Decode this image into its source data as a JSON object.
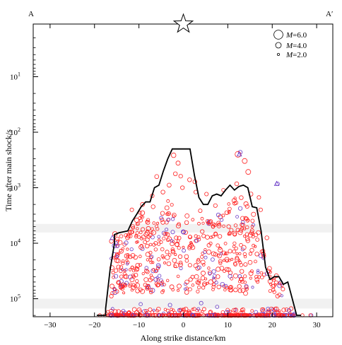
{
  "chart_data": {
    "type": "scatter",
    "title": "",
    "xlabel": "Along strike distance/km",
    "ylabel": "Time after main shock/s",
    "xlim": [
      -33,
      33
    ],
    "ylim": [
      1,
      300000
    ],
    "y_scale": "log",
    "y_reversed": true,
    "y_axis_side": "left",
    "x_ticks": [
      -30,
      -20,
      -10,
      0,
      10,
      20,
      30
    ],
    "x_tick_labels": [
      "−30",
      "−20",
      "−10",
      "0",
      "10",
      "20",
      "30"
    ],
    "y_ticks": [
      10,
      100,
      1000,
      10000,
      100000
    ],
    "y_tick_labels": [
      {
        "base": "10",
        "exp": "1"
      },
      {
        "base": "10",
        "exp": "2"
      },
      {
        "base": "10",
        "exp": "3"
      },
      {
        "base": "10",
        "exp": "4"
      },
      {
        "base": "10",
        "exp": "5"
      }
    ],
    "profile_labels": {
      "left": "A",
      "right": "A′"
    },
    "mainshock_marker": {
      "x": 0,
      "symbol": "star"
    },
    "shaded_bands": [
      {
        "y_from": 4500,
        "y_to": 6400,
        "color": "#e6e6e6"
      },
      {
        "y_from": 100000,
        "y_to": 150000,
        "color": "#e6e6e6"
      }
    ],
    "legend": {
      "placement": "top-right",
      "entries": [
        {
          "symbol": "M",
          "label": "=6.0",
          "magnitude": 6.0
        },
        {
          "symbol": "M",
          "label": "=4.0",
          "magnitude": 4.0
        },
        {
          "symbol": "M",
          "label": "=2.0",
          "magnitude": 2.0
        }
      ]
    },
    "colors": {
      "red_events": "#ff2020",
      "blue_events": "#6a3cc8",
      "envelope": "#000000",
      "band": "#e6e6e6"
    },
    "envelope_line": {
      "x": [
        -19.5,
        -17.5,
        -17.5,
        -16.5,
        -15.5,
        -15.5,
        -14.5,
        -12.5,
        -11.5,
        -10.5,
        -9.5,
        -8.5,
        -7.5,
        -6.5,
        -5.5,
        -4.5,
        -3.5,
        -2.5,
        -1.5,
        1.5,
        2.5,
        3.5,
        4.5,
        5.5,
        6.5,
        7.5,
        8.5,
        9.5,
        10.5,
        11.5,
        12.5,
        13.5,
        14.5,
        15.5,
        16.5,
        17.5,
        18.5,
        19.5,
        20.5,
        21.5,
        22.5,
        23.5,
        24.5,
        25.5,
        26.5
      ],
      "y": [
        350000,
        350000,
        150000,
        30000,
        10000,
        7000,
        6500,
        6000,
        4000,
        3000,
        2200,
        1800,
        1800,
        1000,
        900,
        500,
        300,
        200,
        200,
        200,
        600,
        1500,
        2000,
        2000,
        1400,
        1300,
        1400,
        1100,
        900,
        1100,
        950,
        900,
        1000,
        2200,
        2300,
        6000,
        27000,
        45000,
        40000,
        40000,
        55000,
        50000,
        100000,
        250000,
        250000
      ]
    },
    "events": [
      {
        "x": 12.8,
        "y": 230,
        "m": 3.0,
        "c": "b"
      },
      {
        "x": 12.3,
        "y": 250,
        "m": 4.1,
        "c": "r"
      },
      {
        "x": -2.2,
        "y": 260,
        "m": 3.4,
        "c": "r"
      },
      {
        "x": -1.2,
        "y": 360,
        "m": 3.2,
        "c": "r"
      },
      {
        "x": 13.8,
        "y": 330,
        "m": 3.6,
        "c": "r"
      },
      {
        "x": -6.0,
        "y": 630,
        "m": 3.1,
        "c": "r"
      },
      {
        "x": -1.8,
        "y": 560,
        "m": 3.0,
        "c": "r"
      },
      {
        "x": -0.6,
        "y": 620,
        "m": 2.9,
        "c": "r"
      },
      {
        "x": 1.4,
        "y": 720,
        "m": 3.0,
        "c": "r"
      },
      {
        "x": 2.6,
        "y": 780,
        "m": 3.0,
        "c": "r"
      },
      {
        "x": 14.6,
        "y": 520,
        "m": 3.6,
        "c": "r"
      },
      {
        "x": 12.0,
        "y": 850,
        "m": 3.0,
        "c": "r"
      },
      {
        "x": 21.2,
        "y": 850,
        "m": 2.8,
        "c": "b"
      },
      {
        "x": -7.0,
        "y": 1400,
        "m": 2.8,
        "c": "r"
      },
      {
        "x": -4.6,
        "y": 1200,
        "m": 3.0,
        "c": "r"
      },
      {
        "x": -3.2,
        "y": 900,
        "m": 3.1,
        "c": "r"
      },
      {
        "x": -0.2,
        "y": 1000,
        "m": 2.9,
        "c": "r"
      },
      {
        "x": 2.8,
        "y": 1200,
        "m": 2.9,
        "c": "r"
      },
      {
        "x": 5.2,
        "y": 1300,
        "m": 2.8,
        "c": "r"
      },
      {
        "x": 9.0,
        "y": 1100,
        "m": 2.7,
        "c": "r"
      },
      {
        "x": 15.2,
        "y": 1300,
        "m": 3.1,
        "c": "r"
      },
      {
        "x": 17.0,
        "y": 1500,
        "m": 2.8,
        "c": "r"
      },
      {
        "x": -9.2,
        "y": 2000,
        "m": 3.1,
        "c": "r"
      },
      {
        "x": -11.6,
        "y": 2500,
        "m": 2.8,
        "c": "r"
      },
      {
        "x": -6.8,
        "y": 2200,
        "m": 3.0,
        "c": "r"
      },
      {
        "x": 3.8,
        "y": 2600,
        "m": 2.8,
        "c": "r"
      },
      {
        "x": 7.2,
        "y": 2100,
        "m": 2.9,
        "c": "r"
      },
      {
        "x": 10.4,
        "y": 2400,
        "m": 2.7,
        "c": "r"
      },
      {
        "x": 17.4,
        "y": 2500,
        "m": 2.8,
        "c": "r"
      },
      {
        "x": -5.0,
        "y": 3500,
        "m": 2.7,
        "c": "b"
      },
      {
        "x": -3.4,
        "y": 3800,
        "m": 2.7,
        "c": "b"
      },
      {
        "x": 8.6,
        "y": 3800,
        "m": 2.6,
        "c": "b"
      },
      {
        "x": 13.4,
        "y": 4200,
        "m": 2.7,
        "c": "b"
      },
      {
        "x": -15.4,
        "y": 6800,
        "m": 3.4,
        "c": "r"
      },
      {
        "x": -8.4,
        "y": 7000,
        "m": 3.2,
        "c": "r"
      },
      {
        "x": -14.0,
        "y": 7500,
        "m": 2.7,
        "c": "r"
      },
      {
        "x": -1.6,
        "y": 8000,
        "m": 2.9,
        "c": "r"
      },
      {
        "x": 18.8,
        "y": 8000,
        "m": 3.0,
        "c": "r"
      },
      {
        "x": 3.0,
        "y": 9000,
        "m": 2.8,
        "c": "b"
      },
      {
        "x": 13.6,
        "y": 12000,
        "m": 3.3,
        "c": "r"
      },
      {
        "x": -3.6,
        "y": 18000,
        "m": 3.3,
        "c": "r"
      },
      {
        "x": -1.6,
        "y": 25000,
        "m": 3.6,
        "c": "r"
      },
      {
        "x": 4.4,
        "y": 22000,
        "m": 3.2,
        "c": "r"
      },
      {
        "x": 10.2,
        "y": 30000,
        "m": 3.0,
        "c": "r"
      },
      {
        "x": 15.2,
        "y": 35000,
        "m": 3.2,
        "c": "r"
      },
      {
        "x": -6.2,
        "y": 45000,
        "m": 3.0,
        "c": "b"
      },
      {
        "x": 0.8,
        "y": 50000,
        "m": 3.1,
        "c": "r"
      },
      {
        "x": 8.8,
        "y": 55000,
        "m": 3.0,
        "c": "b"
      },
      {
        "x": 12.6,
        "y": 60000,
        "m": 2.9,
        "c": "r"
      },
      {
        "x": 20.2,
        "y": 60000,
        "m": 3.1,
        "c": "r"
      },
      {
        "x": -16.2,
        "y": 90000,
        "m": 2.9,
        "c": "r"
      },
      {
        "x": 14.0,
        "y": 80000,
        "m": 3.2,
        "c": "r"
      },
      {
        "x": 21.2,
        "y": 90000,
        "m": 2.9,
        "c": "r"
      },
      {
        "x": -3.0,
        "y": 130000,
        "m": 2.8,
        "c": "b"
      },
      {
        "x": 4.0,
        "y": 120000,
        "m": 2.8,
        "c": "b"
      },
      {
        "x": -9.6,
        "y": 125000,
        "m": 2.7,
        "c": "b"
      },
      {
        "x": 7.6,
        "y": 140000,
        "m": 2.7,
        "c": "b"
      },
      {
        "x": -1.8,
        "y": 230000,
        "m": 3.0,
        "c": "r"
      },
      {
        "x": 2.2,
        "y": 260000,
        "m": 2.9,
        "c": "b"
      },
      {
        "x": 10.4,
        "y": 300000,
        "m": 2.9,
        "c": "r"
      },
      {
        "x": -12.4,
        "y": 380000,
        "m": 3.1,
        "c": "r"
      },
      {
        "x": 18.8,
        "y": 360000,
        "m": 3.0,
        "c": "r"
      },
      {
        "x": 24.6,
        "y": 300000,
        "m": 2.6,
        "c": "b"
      },
      {
        "x": 28.8,
        "y": 500000,
        "m": 2.6,
        "c": "b"
      },
      {
        "x": 28.6,
        "y": 250000,
        "m": 2.7,
        "c": "r"
      },
      {
        "x": 26.8,
        "y": 240000,
        "m": 2.6,
        "c": "r"
      },
      {
        "x": -17.6,
        "y": 330000,
        "m": 2.6,
        "c": "r"
      },
      {
        "x": -18.8,
        "y": 360000,
        "m": 2.6,
        "c": "r"
      }
    ],
    "dense_columns": [
      {
        "x": -15.8,
        "y_top": 9000,
        "y_bottom": 80000,
        "count": 14
      },
      {
        "x": -14.8,
        "y_top": 8000,
        "y_bottom": 85000,
        "count": 18
      },
      {
        "x": -13.8,
        "y_top": 6500,
        "y_bottom": 80000,
        "count": 20
      },
      {
        "x": -12.8,
        "y_top": 6500,
        "y_bottom": 75000,
        "count": 22
      },
      {
        "x": -11.6,
        "y_top": 4500,
        "y_bottom": 80000,
        "count": 22
      },
      {
        "x": -10.4,
        "y_top": 3500,
        "y_bottom": 75000,
        "count": 20
      },
      {
        "x": -9.4,
        "y_top": 2800,
        "y_bottom": 80000,
        "count": 18
      },
      {
        "x": -8.2,
        "y_top": 3000,
        "y_bottom": 75000,
        "count": 22
      },
      {
        "x": -7.0,
        "y_top": 3500,
        "y_bottom": 80000,
        "count": 22
      },
      {
        "x": -5.8,
        "y_top": 2500,
        "y_bottom": 75000,
        "count": 20
      },
      {
        "x": -4.6,
        "y_top": 1800,
        "y_bottom": 80000,
        "count": 18
      },
      {
        "x": -3.4,
        "y_top": 1500,
        "y_bottom": 75000,
        "count": 16
      },
      {
        "x": -2.2,
        "y_top": 1200,
        "y_bottom": 80000,
        "count": 16
      },
      {
        "x": -1.0,
        "y_top": 1500,
        "y_bottom": 75000,
        "count": 14
      },
      {
        "x": 0.4,
        "y_top": 3000,
        "y_bottom": 80000,
        "count": 14
      },
      {
        "x": 1.8,
        "y_top": 3500,
        "y_bottom": 80000,
        "count": 14
      },
      {
        "x": 3.2,
        "y_top": 3500,
        "y_bottom": 80000,
        "count": 16
      },
      {
        "x": 4.6,
        "y_top": 3000,
        "y_bottom": 75000,
        "count": 16
      },
      {
        "x": 5.8,
        "y_top": 3500,
        "y_bottom": 80000,
        "count": 18
      },
      {
        "x": 7.0,
        "y_top": 3200,
        "y_bottom": 75000,
        "count": 18
      },
      {
        "x": 8.2,
        "y_top": 3000,
        "y_bottom": 80000,
        "count": 18
      },
      {
        "x": 9.4,
        "y_top": 2500,
        "y_bottom": 75000,
        "count": 16
      },
      {
        "x": 10.6,
        "y_top": 1800,
        "y_bottom": 80000,
        "count": 18
      },
      {
        "x": 11.8,
        "y_top": 1500,
        "y_bottom": 75000,
        "count": 20
      },
      {
        "x": 13.0,
        "y_top": 1500,
        "y_bottom": 80000,
        "count": 22
      },
      {
        "x": 14.2,
        "y_top": 1600,
        "y_bottom": 75000,
        "count": 20
      },
      {
        "x": 15.4,
        "y_top": 2800,
        "y_bottom": 80000,
        "count": 16
      },
      {
        "x": 16.6,
        "y_top": 5000,
        "y_bottom": 75000,
        "count": 12
      },
      {
        "x": 17.8,
        "y_top": 12000,
        "y_bottom": 80000,
        "count": 10
      },
      {
        "x": 19.2,
        "y_top": 28000,
        "y_bottom": 85000,
        "count": 8
      },
      {
        "x": 20.6,
        "y_top": 35000,
        "y_bottom": 85000,
        "count": 8
      },
      {
        "x": 22.0,
        "y_top": 45000,
        "y_bottom": 90000,
        "count": 7
      }
    ],
    "dense_bands": [
      {
        "x_from": -17,
        "x_to": 25,
        "y_top": 150000,
        "y_bottom": 420000,
        "count": 420
      }
    ]
  }
}
